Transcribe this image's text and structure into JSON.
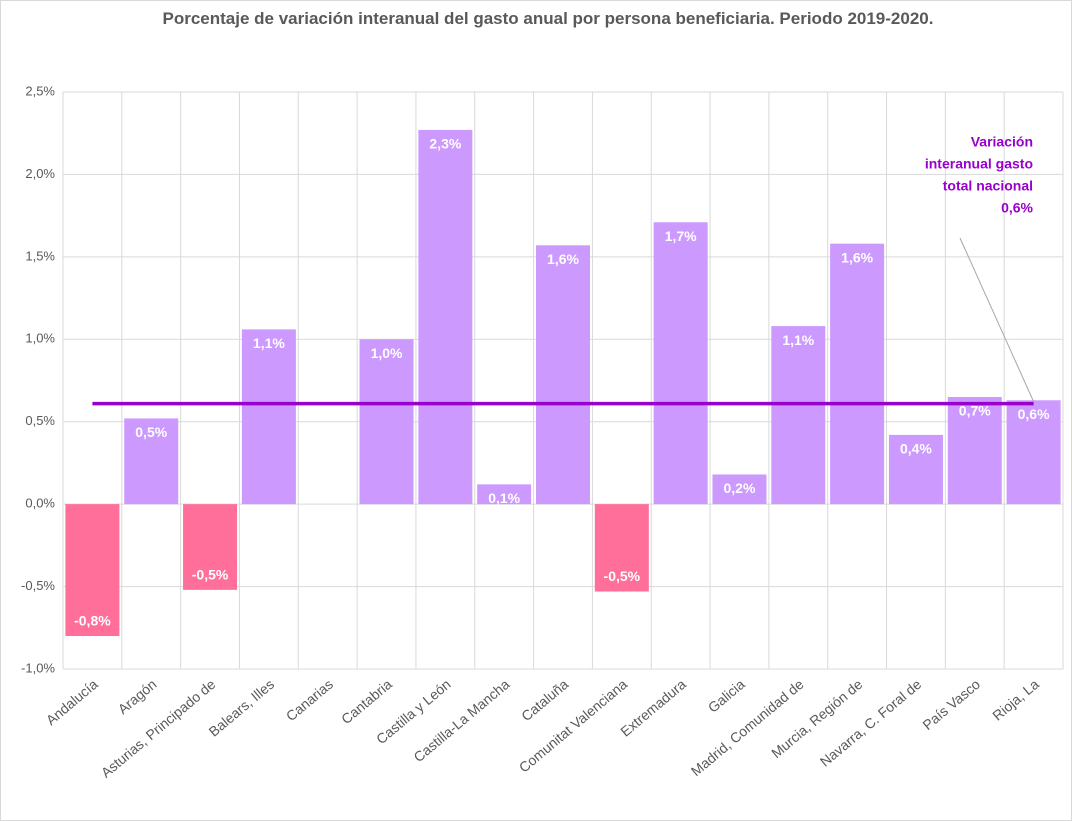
{
  "chart_data": {
    "type": "bar",
    "title": "Porcentaje de variación interanual del gasto anual por persona beneficiaria. Periodo 2019-2020.",
    "categories": [
      "Andalucía",
      "Aragón",
      "Asturias, Principado de",
      "Balears, Illes",
      "Canarias",
      "Cantabria",
      "Castilla y León",
      "Castilla-La Mancha",
      "Cataluña",
      "Comunitat Valenciana",
      "Extremadura",
      "Galicia",
      "Madrid, Comunidad de",
      "Murcia, Región de",
      "Navarra, C. Foral de",
      "País Vasco",
      "Rioja, La"
    ],
    "values": [
      -0.8,
      0.52,
      -0.52,
      1.06,
      null,
      1.0,
      2.27,
      0.12,
      1.57,
      -0.53,
      1.71,
      0.18,
      1.08,
      1.58,
      0.42,
      0.65,
      0.63
    ],
    "value_labels": [
      "-0,8%",
      "0,5%",
      "-0,5%",
      "1,1%",
      null,
      "1,0%",
      "2,3%",
      "0,1%",
      "1,6%",
      "-0,5%",
      "1,7%",
      "0,2%",
      "1,1%",
      "1,6%",
      "0,4%",
      "0,7%",
      "0,6%"
    ],
    "color": "#cc99ff",
    "negative_color": "#ff6f9a",
    "ylim": [
      -1.0,
      2.5
    ],
    "yticks": [
      {
        "value": -1.0,
        "label": "-1,0%"
      },
      {
        "value": -0.5,
        "label": "-0,5%"
      },
      {
        "value": 0,
        "label": "0,0%"
      },
      {
        "value": 0.5,
        "label": "0,5%"
      },
      {
        "value": 1.0,
        "label": "1,0%"
      },
      {
        "value": 1.5,
        "label": "1,5%"
      },
      {
        "value": 2.0,
        "label": "2,0%"
      },
      {
        "value": 2.5,
        "label": "2,5%"
      }
    ],
    "grid": true,
    "reference_line": {
      "value": 0.61,
      "color": "#9900cc",
      "label_lines": [
        "Variación",
        "interanual gasto",
        "total nacional",
        "0,6%"
      ]
    }
  }
}
